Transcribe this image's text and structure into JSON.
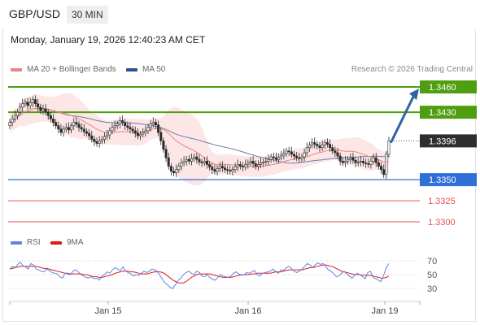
{
  "header": {
    "pair": "GBP/USD",
    "timeframe": "30 MIN"
  },
  "timestamp": "Monday, January 19, 2026 12:40:23 AM CET",
  "legend": {
    "bollinger": "MA 20 + Bollinger Bands",
    "ma50": "MA 50",
    "rsi": "RSI",
    "rsi_ma": "9MA"
  },
  "credit": "Research © 2026 Trading Central",
  "colors": {
    "resistance": "#4f9e12",
    "support": "#2f6fd8",
    "stop": "#e85050",
    "ma20": "#f08080",
    "band": "#fde2e2",
    "ma50": "#5b6ea6",
    "arrow": "#2f63a8",
    "current_tag": "#2e2e2e",
    "rsi": "#5b86e5",
    "rsi_ma": "#e0191b"
  },
  "chart_data": [
    {
      "type": "candlestick",
      "title": "GBP/USD",
      "timeframe": "30 MIN",
      "x_labels": [
        "Jan 15",
        "Jan 16",
        "Jan 19"
      ],
      "ylim": [
        1.329,
        1.347
      ],
      "price_levels": [
        {
          "label": "1.3460",
          "value": 1.346,
          "kind": "resistance"
        },
        {
          "label": "1.3430",
          "value": 1.343,
          "kind": "resistance"
        },
        {
          "label": "1.3396",
          "value": 1.3396,
          "kind": "current"
        },
        {
          "label": "1.3350",
          "value": 1.335,
          "kind": "support"
        },
        {
          "label": "1.3325",
          "value": 1.3325,
          "kind": "stop"
        },
        {
          "label": "1.3300",
          "value": 1.33,
          "kind": "stop"
        }
      ],
      "forecast_arrow": {
        "from": 1.3395,
        "to": 1.3458,
        "direction": "up"
      },
      "close_series": [
        1.3418,
        1.3422,
        1.3426,
        1.343,
        1.3436,
        1.344,
        1.3442,
        1.3438,
        1.3441,
        1.3445,
        1.344,
        1.3436,
        1.3432,
        1.3434,
        1.343,
        1.3426,
        1.3422,
        1.3418,
        1.3414,
        1.341,
        1.3406,
        1.341,
        1.3412,
        1.3409,
        1.3414,
        1.3418,
        1.3416,
        1.3412,
        1.341,
        1.3407,
        1.3405,
        1.3402,
        1.3398,
        1.3395,
        1.3393,
        1.3396,
        1.3398,
        1.3401,
        1.3403,
        1.3408,
        1.3412,
        1.3414,
        1.3416,
        1.342,
        1.3418,
        1.3414,
        1.3412,
        1.341,
        1.3408,
        1.3405,
        1.3402,
        1.3404,
        1.3406,
        1.3408,
        1.3412,
        1.3416,
        1.3418,
        1.3415,
        1.3406,
        1.3396,
        1.3386,
        1.3376,
        1.3366,
        1.336,
        1.3358,
        1.3362,
        1.3366,
        1.337,
        1.3372,
        1.3374,
        1.3372,
        1.3375,
        1.3377,
        1.3374,
        1.3371,
        1.337,
        1.3372,
        1.3368,
        1.3365,
        1.3362,
        1.336,
        1.3363,
        1.3366,
        1.3364,
        1.3362,
        1.3361,
        1.336,
        1.3362,
        1.3365,
        1.3368,
        1.3366,
        1.3365,
        1.3368,
        1.337,
        1.3372,
        1.3369,
        1.3366,
        1.3368,
        1.337,
        1.3371,
        1.3372,
        1.3374,
        1.3377,
        1.3376,
        1.3374,
        1.3377,
        1.3379,
        1.3381,
        1.3384,
        1.3383,
        1.338,
        1.3378,
        1.3376,
        1.3375,
        1.3377,
        1.3382,
        1.3388,
        1.3391,
        1.3394,
        1.3392,
        1.339,
        1.3388,
        1.3391,
        1.3394,
        1.3392,
        1.3388,
        1.3384,
        1.3382,
        1.3378,
        1.3372,
        1.337,
        1.3372,
        1.3374,
        1.3376,
        1.3373,
        1.337,
        1.3371,
        1.3372,
        1.337,
        1.3369,
        1.3368,
        1.3372,
        1.3376,
        1.337,
        1.3366,
        1.3362,
        1.3356,
        1.338,
        1.3396
      ],
      "rsi": {
        "ylim": [
          20,
          80
        ],
        "ticks": [
          70,
          50,
          30
        ],
        "rsi_values": [
          58,
          62,
          60,
          65,
          68,
          63,
          61,
          58,
          66,
          64,
          58,
          57,
          55,
          54,
          58,
          56,
          53,
          52,
          51,
          47,
          45,
          52,
          51,
          50,
          55,
          57,
          54,
          50,
          48,
          46,
          45,
          47,
          44,
          45,
          42,
          48,
          50,
          54,
          52,
          57,
          60,
          58,
          56,
          61,
          55,
          53,
          51,
          48,
          50,
          49,
          52,
          55,
          53,
          55,
          58,
          57,
          55,
          49,
          43,
          38,
          35,
          31,
          30,
          36,
          42,
          45,
          50,
          53,
          55,
          52,
          50,
          55,
          53,
          48,
          47,
          50,
          46,
          43,
          42,
          46,
          50,
          48,
          47,
          46,
          48,
          52,
          54,
          51,
          49,
          50,
          53,
          52,
          54,
          56,
          50,
          48,
          52,
          53,
          54,
          55,
          58,
          55,
          52,
          57,
          56,
          60,
          62,
          59,
          55,
          53,
          55,
          58,
          62,
          66,
          64,
          60,
          64,
          67,
          65,
          66,
          62,
          57,
          55,
          52,
          47,
          48,
          52,
          55,
          51,
          48,
          45,
          49,
          52,
          50,
          47,
          44,
          53,
          55,
          46,
          44,
          42,
          40,
          49,
          60,
          66
        ],
        "ma_values": [
          58,
          59,
          60,
          61,
          62,
          62,
          62,
          62,
          62,
          62,
          62,
          61,
          60,
          59,
          59,
          58,
          57,
          56,
          55,
          54,
          53,
          52,
          52,
          51,
          51,
          51,
          51,
          51,
          50,
          50,
          49,
          48,
          47,
          47,
          46,
          46,
          47,
          48,
          49,
          50,
          52,
          53,
          54,
          55,
          55,
          55,
          54,
          54,
          53,
          52,
          51,
          51,
          51,
          52,
          53,
          54,
          54,
          54,
          53,
          51,
          48,
          45,
          42,
          40,
          38,
          38,
          38,
          40,
          43,
          46,
          48,
          50,
          51,
          51,
          51,
          51,
          51,
          50,
          49,
          48,
          47,
          46,
          46,
          46,
          46,
          47,
          48,
          49,
          50,
          50,
          50,
          50,
          51,
          51,
          52,
          52,
          52,
          52,
          52,
          52,
          53,
          54,
          54,
          54,
          55,
          56,
          57,
          57,
          57,
          57,
          57,
          57,
          58,
          59,
          60,
          60,
          61,
          62,
          63,
          64,
          64,
          63,
          62,
          61,
          59,
          57,
          55,
          54,
          53,
          52,
          51,
          50,
          50,
          50,
          49,
          49,
          49,
          49,
          48,
          47,
          46,
          45,
          45,
          46,
          48
        ]
      }
    }
  ]
}
